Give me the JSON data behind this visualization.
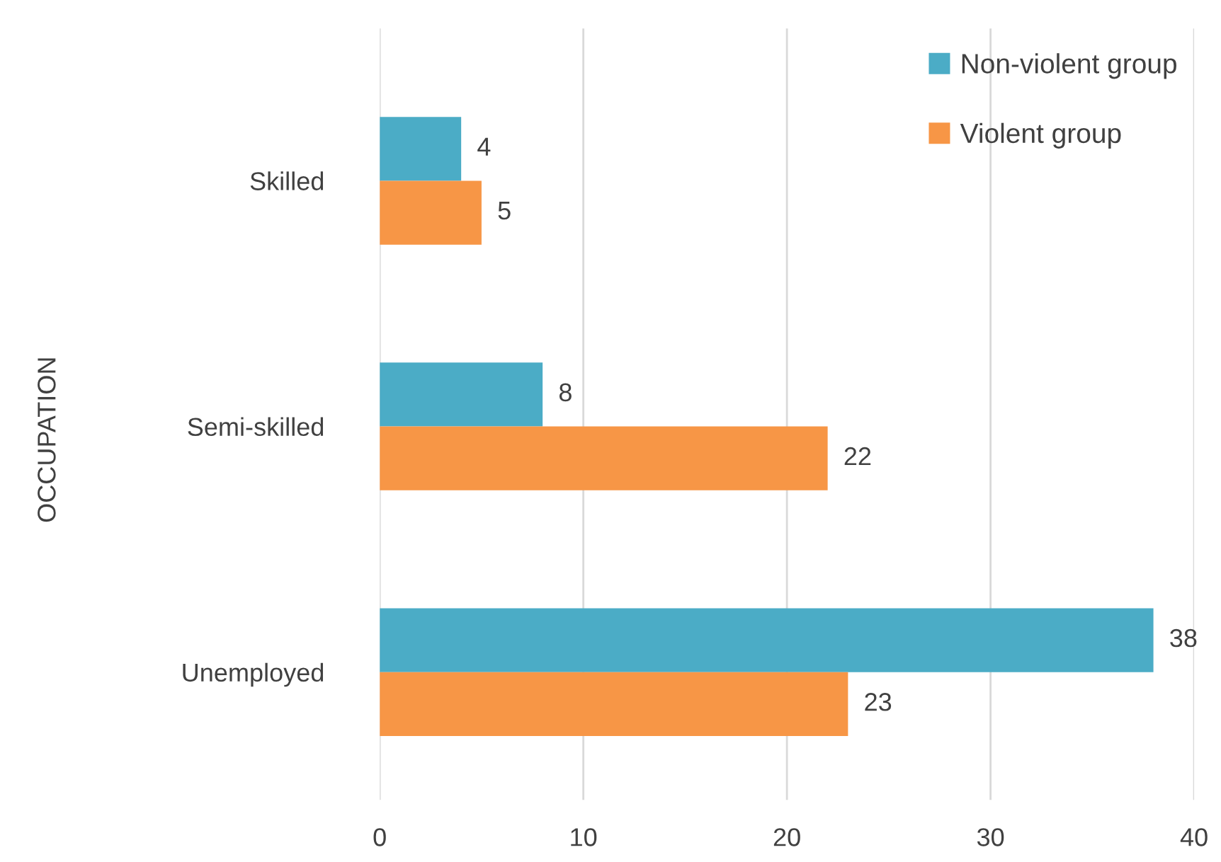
{
  "chart_data": {
    "type": "bar",
    "orientation": "horizontal",
    "ylabel": "OCCUPATION",
    "categories": [
      "Skilled",
      "Semi-skilled",
      "Unemployed"
    ],
    "series": [
      {
        "name": "Non-violent group",
        "color": "#4bacc6",
        "values": [
          4,
          8,
          38
        ]
      },
      {
        "name": "Violent group",
        "color": "#f79646",
        "values": [
          5,
          22,
          23
        ]
      }
    ],
    "xlim": [
      0,
      40
    ],
    "xticks": [
      0,
      10,
      20,
      30,
      40
    ],
    "grid": "x",
    "legend": "top right",
    "data_labels": true
  }
}
